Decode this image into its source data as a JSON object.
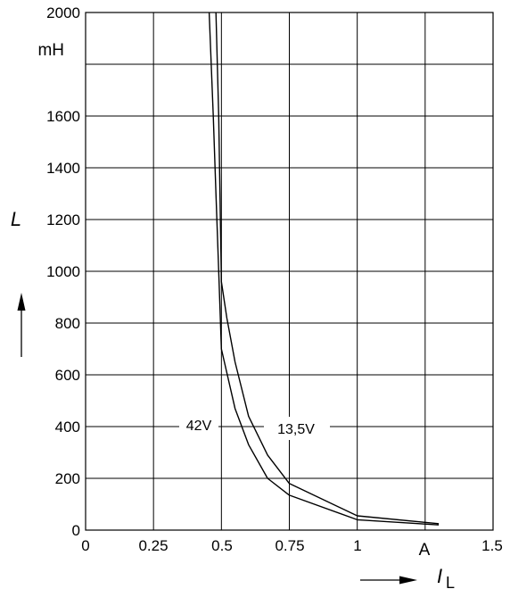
{
  "chart_data": {
    "type": "line",
    "x_unit": "A",
    "y_unit": "mH",
    "x_symbol": "I",
    "x_subscript": "L",
    "y_symbol": "L",
    "xlim": [
      0,
      1.5
    ],
    "ylim": [
      0,
      2000
    ],
    "x_ticks": [
      {
        "value": 0,
        "label": "0"
      },
      {
        "value": 0.25,
        "label": "0.25"
      },
      {
        "value": 0.5,
        "label": "0.5"
      },
      {
        "value": 0.75,
        "label": "0.75"
      },
      {
        "value": 1,
        "label": "1"
      },
      {
        "value": 1.5,
        "label": "1.5"
      }
    ],
    "y_ticks": [
      {
        "value": 0,
        "label": "0"
      },
      {
        "value": 200,
        "label": "200"
      },
      {
        "value": 400,
        "label": "400"
      },
      {
        "value": 600,
        "label": "600"
      },
      {
        "value": 800,
        "label": "800"
      },
      {
        "value": 1000,
        "label": "1000"
      },
      {
        "value": 1200,
        "label": "1200"
      },
      {
        "value": 1400,
        "label": "1400"
      },
      {
        "value": 1600,
        "label": "1600"
      },
      {
        "value": 2000,
        "label": "2000"
      }
    ],
    "grid_x": [
      0.25,
      0.5,
      0.75,
      1,
      1.25
    ],
    "grid_y": [
      200,
      400,
      600,
      800,
      1000,
      1200,
      1400,
      1600,
      1800
    ],
    "grid": true,
    "series": [
      {
        "name": "42V",
        "x": [
          0.455,
          0.47,
          0.48,
          0.49,
          0.5,
          0.55,
          0.6,
          0.67,
          0.75,
          1.0,
          1.3
        ],
        "y": [
          2000,
          1600,
          1300,
          1000,
          700,
          470,
          330,
          200,
          135,
          40,
          20
        ]
      },
      {
        "name": "13,5V",
        "x": [
          0.48,
          0.49,
          0.5,
          0.52,
          0.55,
          0.6,
          0.67,
          0.75,
          1.0,
          1.3
        ],
        "y": [
          2000,
          1600,
          960,
          820,
          650,
          440,
          290,
          180,
          55,
          25
        ]
      }
    ]
  }
}
